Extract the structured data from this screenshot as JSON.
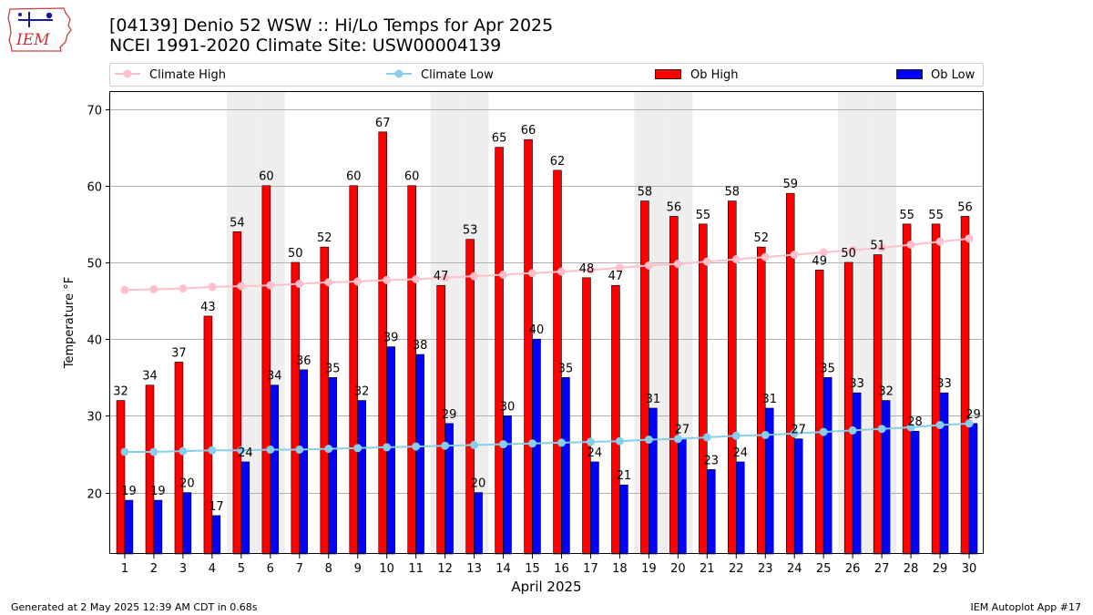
{
  "logo": {
    "text": "IEM"
  },
  "header": {
    "title_line1": "[04139] Denio 52 WSW :: Hi/Lo Temps for Apr 2025",
    "title_line2": "NCEI 1991-2020 Climate Site: USW00004139"
  },
  "footer": {
    "left": "Generated at 2 May 2025 12:39 AM CDT in 0.68s",
    "right": "IEM Autoplot App #17"
  },
  "colors": {
    "ob_high": "#ff0000",
    "ob_low": "#0000ff",
    "climate_high": "#ffc0cb",
    "climate_low": "#87ceeb",
    "weekend_shade": "#eeeeee",
    "grid": "#b0b0b0"
  },
  "chart_data": {
    "type": "bar",
    "title": "[04139] Denio 52 WSW :: Hi/Lo Temps for Apr 2025",
    "subtitle": "NCEI 1991-2020 Climate Site: USW00004139",
    "xlabel": "April 2025",
    "ylabel": "Temperature °F",
    "ylim": [
      12,
      72.2
    ],
    "yticks": [
      20,
      30,
      40,
      50,
      60,
      70
    ],
    "grid": "horizontal",
    "legend_placement": "top",
    "categories": [
      "1",
      "2",
      "3",
      "4",
      "5",
      "6",
      "7",
      "8",
      "9",
      "10",
      "11",
      "12",
      "13",
      "14",
      "15",
      "16",
      "17",
      "18",
      "19",
      "20",
      "21",
      "22",
      "23",
      "24",
      "25",
      "26",
      "27",
      "28",
      "29",
      "30"
    ],
    "shaded_categories": [
      "5",
      "6",
      "12",
      "13",
      "19",
      "20",
      "26",
      "27"
    ],
    "series": [
      {
        "name": "Ob High",
        "kind": "bar",
        "values": [
          32,
          34,
          37,
          43,
          54,
          60,
          50,
          52,
          60,
          67,
          60,
          47,
          53,
          65,
          66,
          62,
          48,
          47,
          58,
          56,
          55,
          58,
          52,
          59,
          49,
          50,
          51,
          55,
          55,
          56
        ]
      },
      {
        "name": "Ob Low",
        "kind": "bar",
        "values": [
          19,
          19,
          20,
          17,
          24,
          34,
          36,
          35,
          32,
          39,
          38,
          29,
          20,
          30,
          40,
          35,
          24,
          21,
          31,
          27,
          23,
          24,
          31,
          27,
          35,
          33,
          32,
          28,
          33,
          29
        ]
      },
      {
        "name": "Climate High",
        "kind": "line",
        "values": [
          46.4,
          46.5,
          46.6,
          46.8,
          46.9,
          47.0,
          47.2,
          47.4,
          47.5,
          47.7,
          47.8,
          48.0,
          48.2,
          48.4,
          48.6,
          48.8,
          49.0,
          49.3,
          49.6,
          49.8,
          50.1,
          50.4,
          50.7,
          51.0,
          51.3,
          51.6,
          51.9,
          52.3,
          52.7,
          53.1
        ]
      },
      {
        "name": "Climate Low",
        "kind": "line",
        "values": [
          25.3,
          25.3,
          25.4,
          25.5,
          25.5,
          25.6,
          25.6,
          25.7,
          25.8,
          25.9,
          26.0,
          26.1,
          26.2,
          26.3,
          26.4,
          26.5,
          26.6,
          26.7,
          26.9,
          27.0,
          27.2,
          27.4,
          27.5,
          27.7,
          27.9,
          28.1,
          28.3,
          28.5,
          28.8,
          29.0
        ]
      }
    ],
    "legend": [
      "Climate High",
      "Climate Low",
      "Ob High",
      "Ob Low"
    ]
  }
}
